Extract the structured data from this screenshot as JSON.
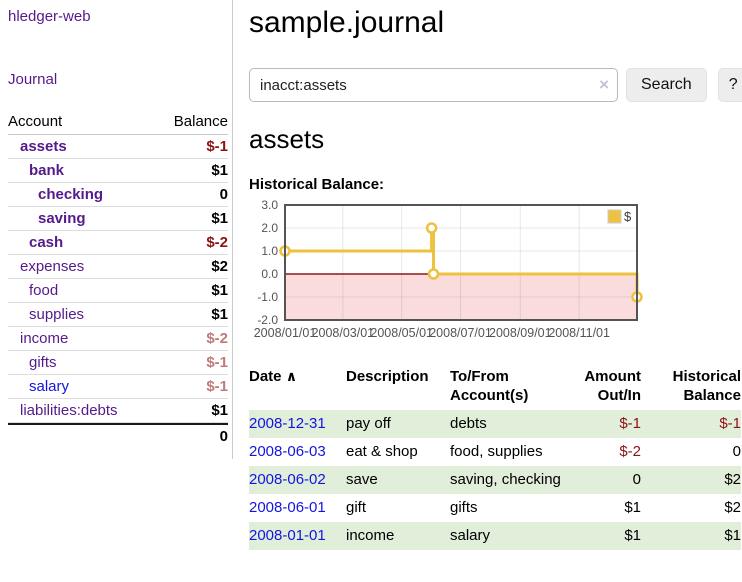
{
  "app": {
    "brand": "hledger-web",
    "nav_journal": "Journal"
  },
  "sidebar": {
    "header": {
      "account": "Account",
      "balance": "Balance"
    },
    "rows": [
      {
        "name": "assets",
        "balance": "$-1",
        "depth": 1,
        "bold": true,
        "negative": true
      },
      {
        "name": "bank",
        "balance": "$1",
        "depth": 2,
        "bold": true
      },
      {
        "name": "checking",
        "balance": "0",
        "depth": 3,
        "bold": true
      },
      {
        "name": "saving",
        "balance": "$1",
        "depth": 3,
        "bold": true
      },
      {
        "name": "cash",
        "balance": "$-2",
        "depth": 2,
        "bold": true,
        "negative": true
      },
      {
        "name": "expenses",
        "balance": "$2",
        "depth": 1
      },
      {
        "name": "food",
        "balance": "$1",
        "depth": 2
      },
      {
        "name": "supplies",
        "balance": "$1",
        "depth": 2
      },
      {
        "name": "income",
        "balance": "$-2",
        "depth": 1,
        "dim_negative": true
      },
      {
        "name": "gifts",
        "balance": "$-1",
        "depth": 2,
        "dim_negative": true
      },
      {
        "name": "salary",
        "balance": "$-1",
        "depth": 2,
        "dim_negative": true,
        "link_blue": true
      },
      {
        "name": "liabilities:debts",
        "balance": "$1",
        "depth": 1
      }
    ],
    "total": "0"
  },
  "main": {
    "title": "sample.journal",
    "search": {
      "value": "inacct:assets",
      "clear": "×",
      "button": "Search",
      "help": "?"
    },
    "account_heading": "assets",
    "chart_title": "Historical Balance:"
  },
  "chart_data": {
    "type": "line",
    "title": "Historical Balance",
    "legend": {
      "label": "$",
      "position": "top-right"
    },
    "xlim": [
      "2008-01-01",
      "2008-12-31"
    ],
    "ylim": [
      -2,
      3
    ],
    "x_ticks": [
      "2008/01/01",
      "2008/03/01",
      "2008/05/01",
      "2008/07/01",
      "2008/09/01",
      "2008/11/01"
    ],
    "y_ticks": [
      "3.0",
      "2.0",
      "1.0",
      "0.0",
      "-1.0",
      "-2.0"
    ],
    "grid": true,
    "series": [
      {
        "name": "$",
        "color": "#edc240",
        "steps": true,
        "marker": "circle",
        "points": [
          [
            "2008-01-01",
            1.0
          ],
          [
            "2008-06-01",
            2.0
          ],
          [
            "2008-06-03",
            0.0
          ],
          [
            "2008-12-31",
            -1.0
          ]
        ]
      }
    ],
    "negative_region_fill": "#fbdcdc",
    "zero_line_color": "#8b1a1a",
    "border_color": "#545454",
    "gridline_color": "rgba(0,0,0,0.09)",
    "tick_label_color": "#545454"
  },
  "register": {
    "columns": [
      "Date",
      "Description",
      "To/From Account(s)",
      "Amount Out/In",
      "Historical Balance"
    ],
    "sort_indicator": "∧",
    "rows": [
      {
        "date": "2008-12-31",
        "description": "pay off",
        "accounts": "debts",
        "amount": "$-1",
        "balance": "$-1",
        "amount_neg": true,
        "balance_neg": true
      },
      {
        "date": "2008-06-03",
        "description": "eat & shop",
        "accounts": "food, supplies",
        "amount": "$-2",
        "balance": "0",
        "amount_neg": true
      },
      {
        "date": "2008-06-02",
        "description": "save",
        "accounts": "saving, checking",
        "amount": "0",
        "balance": "$2"
      },
      {
        "date": "2008-06-01",
        "description": "gift",
        "accounts": "gifts",
        "amount": "$1",
        "balance": "$2"
      },
      {
        "date": "2008-01-01",
        "description": "income",
        "accounts": "salary",
        "amount": "$1",
        "balance": "$1"
      }
    ]
  }
}
